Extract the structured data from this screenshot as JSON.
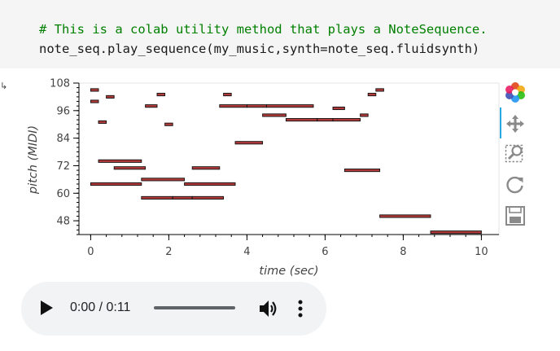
{
  "code": {
    "comment": "# This is a colab utility method that plays a NoteSequence.",
    "statement": "note_seq.play_sequence(my_music,synth=note_seq.fluidsynth)"
  },
  "output_arrow": "↳",
  "chart_data": {
    "type": "piano_roll",
    "xlabel": "time (sec)",
    "ylabel": "pitch (MIDI)",
    "xlim": [
      -0.3,
      10.45
    ],
    "ylim": [
      42,
      108
    ],
    "xticks": [
      0,
      2,
      4,
      6,
      8,
      10
    ],
    "yticks": [
      48,
      60,
      72,
      84,
      96,
      108
    ],
    "note_color": "#b03a3a",
    "notes": [
      {
        "start": 0.0,
        "end": 0.2,
        "pitch": 105
      },
      {
        "start": 0.0,
        "end": 0.2,
        "pitch": 100
      },
      {
        "start": 0.4,
        "end": 0.6,
        "pitch": 102
      },
      {
        "start": 0.2,
        "end": 0.4,
        "pitch": 91
      },
      {
        "start": 0.2,
        "end": 1.3,
        "pitch": 74
      },
      {
        "start": 0.6,
        "end": 1.4,
        "pitch": 71
      },
      {
        "start": 0.0,
        "end": 1.3,
        "pitch": 64
      },
      {
        "start": 1.4,
        "end": 1.7,
        "pitch": 98
      },
      {
        "start": 1.7,
        "end": 1.9,
        "pitch": 103
      },
      {
        "start": 1.9,
        "end": 2.1,
        "pitch": 90
      },
      {
        "start": 1.3,
        "end": 2.4,
        "pitch": 66
      },
      {
        "start": 1.3,
        "end": 2.1,
        "pitch": 58
      },
      {
        "start": 2.1,
        "end": 2.6,
        "pitch": 58
      },
      {
        "start": 2.6,
        "end": 3.4,
        "pitch": 58
      },
      {
        "start": 2.6,
        "end": 3.3,
        "pitch": 71
      },
      {
        "start": 2.4,
        "end": 3.7,
        "pitch": 64
      },
      {
        "start": 3.4,
        "end": 3.6,
        "pitch": 103
      },
      {
        "start": 3.3,
        "end": 4.0,
        "pitch": 98
      },
      {
        "start": 4.0,
        "end": 4.5,
        "pitch": 98
      },
      {
        "start": 4.5,
        "end": 5.7,
        "pitch": 98
      },
      {
        "start": 3.7,
        "end": 4.4,
        "pitch": 82
      },
      {
        "start": 4.4,
        "end": 5.0,
        "pitch": 94
      },
      {
        "start": 5.0,
        "end": 5.8,
        "pitch": 92
      },
      {
        "start": 5.8,
        "end": 6.2,
        "pitch": 92
      },
      {
        "start": 6.2,
        "end": 6.9,
        "pitch": 92
      },
      {
        "start": 6.2,
        "end": 6.5,
        "pitch": 97
      },
      {
        "start": 6.5,
        "end": 7.4,
        "pitch": 70
      },
      {
        "start": 6.9,
        "end": 7.1,
        "pitch": 94
      },
      {
        "start": 7.1,
        "end": 7.3,
        "pitch": 103
      },
      {
        "start": 7.3,
        "end": 7.5,
        "pitch": 105
      },
      {
        "start": 7.4,
        "end": 8.7,
        "pitch": 50
      },
      {
        "start": 8.7,
        "end": 10.0,
        "pitch": 43
      }
    ]
  },
  "toolbar": {
    "tools": [
      "bokeh-logo-icon",
      "pan-icon",
      "box-zoom-icon",
      "reset-icon",
      "save-icon"
    ]
  },
  "audio": {
    "time": "0:00 / 0:11",
    "progress": 0
  }
}
